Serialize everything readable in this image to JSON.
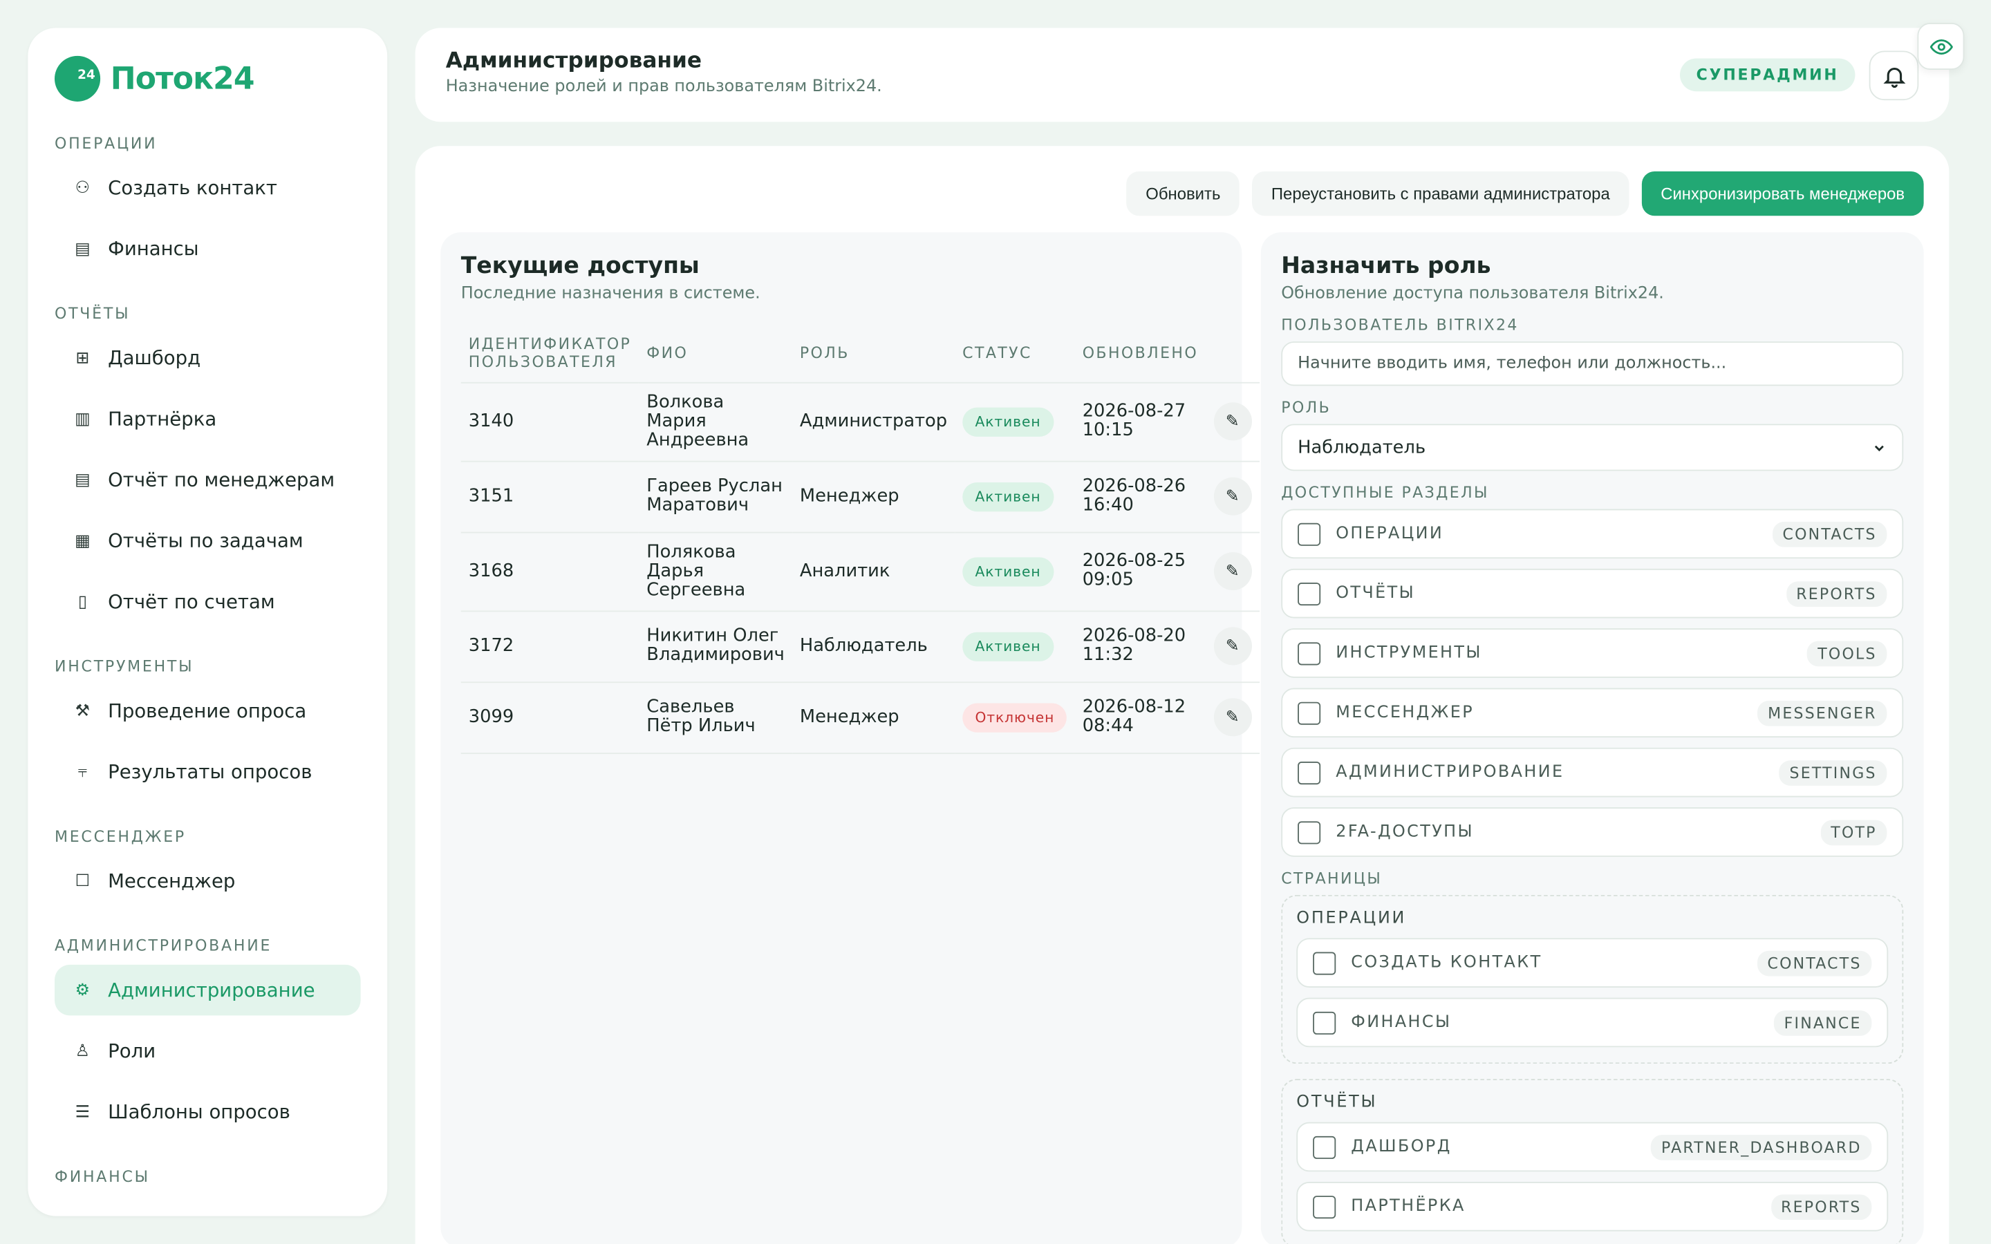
{
  "brand": {
    "name": "Поток24",
    "mark": "24"
  },
  "sidebar": {
    "sections": [
      {
        "title": "Операции",
        "items": [
          {
            "label": "Создать контакт",
            "icon": "user-icon",
            "glyph": "⚇"
          },
          {
            "label": "Финансы",
            "icon": "wallet-icon",
            "glyph": "▤"
          }
        ]
      },
      {
        "title": "Отчёты",
        "items": [
          {
            "label": "Дашборд",
            "icon": "table-icon",
            "glyph": "⊞"
          },
          {
            "label": "Партнёрка",
            "icon": "bar-chart-icon",
            "glyph": "▥"
          },
          {
            "label": "Отчёт по менеджерам",
            "icon": "report-icon",
            "glyph": "▤"
          },
          {
            "label": "Отчёты по задачам",
            "icon": "tasks-icon",
            "glyph": "▦"
          },
          {
            "label": "Отчёт по счетам",
            "icon": "invoice-icon",
            "glyph": "▯"
          }
        ]
      },
      {
        "title": "Инструменты",
        "items": [
          {
            "label": "Проведение опроса",
            "icon": "wrench-icon",
            "glyph": "⚒"
          },
          {
            "label": "Результаты опросов",
            "icon": "chart-icon",
            "glyph": "⫧"
          }
        ]
      },
      {
        "title": "Мессенджер",
        "items": [
          {
            "label": "Мессенджер",
            "icon": "chat-icon",
            "glyph": "☐"
          }
        ]
      },
      {
        "title": "Администрирование",
        "items": [
          {
            "label": "Администрирование",
            "icon": "gear-icon",
            "glyph": "⚙",
            "active": true
          },
          {
            "label": "Роли",
            "icon": "person-icon",
            "glyph": "♙"
          },
          {
            "label": "Шаблоны опросов",
            "icon": "list-icon",
            "glyph": "☰"
          }
        ]
      },
      {
        "title": "Финансы",
        "items": []
      }
    ]
  },
  "header": {
    "title": "Администрирование",
    "subtitle": "Назначение ролей и прав пользователям Bitrix24.",
    "badge": "СУПЕРАДМИН"
  },
  "toolbar": {
    "refresh": "Обновить",
    "reinstall": "Переустановить с правами администратора",
    "sync": "Синхронизировать менеджеров"
  },
  "access": {
    "title": "Текущие доступы",
    "subtitle": "Последние назначения в системе.",
    "columns": [
      "Идентификатор пользователя",
      "ФИО",
      "Роль",
      "Статус",
      "Обновлено"
    ],
    "rows": [
      {
        "id": "3140",
        "name": "Волкова Мария Андреевна",
        "role": "Администратор",
        "status": "Активен",
        "active": true,
        "updated": "2026-08-27 10:15"
      },
      {
        "id": "3151",
        "name": "Гареев Руслан Маратович",
        "role": "Менеджер",
        "status": "Активен",
        "active": true,
        "updated": "2026-08-26 16:40"
      },
      {
        "id": "3168",
        "name": "Полякова Дарья Сергеевна",
        "role": "Аналитик",
        "status": "Активен",
        "active": true,
        "updated": "2026-08-25 09:05"
      },
      {
        "id": "3172",
        "name": "Никитин Олег Владимирович",
        "role": "Наблюдатель",
        "status": "Активен",
        "active": true,
        "updated": "2026-08-20 11:32"
      },
      {
        "id": "3099",
        "name": "Савельев Пётр Ильич",
        "role": "Менеджер",
        "status": "Отключен",
        "active": false,
        "updated": "2026-08-12 08:44"
      }
    ],
    "edit_glyph": "✎"
  },
  "role": {
    "title": "Назначить роль",
    "subtitle": "Обновление доступа пользователя Bitrix24.",
    "user_label": "Пользователь Bitrix24",
    "user_placeholder": "Начните вводить имя, телефон или должность...",
    "role_label": "Роль",
    "role_value": "Наблюдатель",
    "sections_label": "Доступные разделы",
    "sections": [
      {
        "label": "Операции",
        "tag": "CONTACTS"
      },
      {
        "label": "Отчёты",
        "tag": "REPORTS"
      },
      {
        "label": "Инструменты",
        "tag": "TOOLS"
      },
      {
        "label": "Мессенджер",
        "tag": "MESSENGER"
      },
      {
        "label": "Администрирование",
        "tag": "SETTINGS"
      },
      {
        "label": "2FA-доступы",
        "tag": "TOTP"
      }
    ],
    "pages_label": "Страницы",
    "page_groups": [
      {
        "title": "Операции",
        "pages": [
          {
            "label": "Создать контакт",
            "tag": "CONTACTS"
          },
          {
            "label": "Финансы",
            "tag": "FINANCE"
          }
        ]
      },
      {
        "title": "Отчёты",
        "pages": [
          {
            "label": "Дашборд",
            "tag": "PARTNER_DASHBOARD"
          },
          {
            "label": "Партнёрка",
            "tag": "REPORTS"
          }
        ]
      }
    ]
  },
  "colors": {
    "accent": "#1ea672",
    "background": "#eef5f1"
  }
}
